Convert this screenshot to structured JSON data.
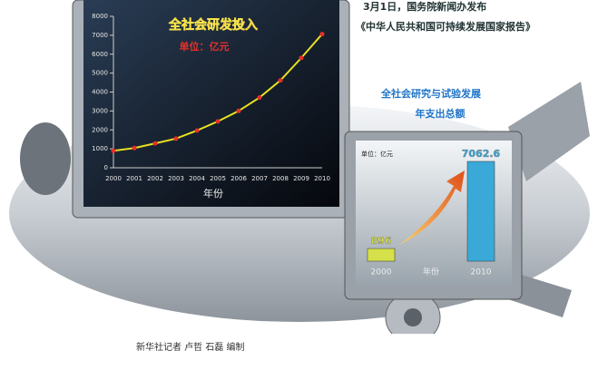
{
  "header": {
    "lines": [
      "3月1日，国务院新闻办发布",
      "《中华人民共和国可持续发展国家报告》"
    ]
  },
  "credit": "新华社记者 卢哲 石磊 编制",
  "chart_data": [
    {
      "type": "line",
      "title": "全社会研发投入",
      "subtitle": "单位：亿元",
      "x_label": "年份",
      "categories": [
        "2000",
        "2001",
        "2002",
        "2003",
        "2004",
        "2005",
        "2006",
        "2007",
        "2008",
        "2009",
        "2010"
      ],
      "values": [
        896,
        1043,
        1288,
        1540,
        1966,
        2450,
        3003,
        3710,
        4616,
        5802,
        7062.6
      ],
      "color": "#e8e020",
      "ylim": [
        0,
        8000
      ],
      "yticks": [
        0,
        1000,
        2000,
        3000,
        4000,
        5000,
        6000,
        7000,
        8000
      ]
    },
    {
      "type": "bar",
      "title": "全社会研究与试验发展",
      "subtitle": "年支出总额",
      "unit": "单位：亿元",
      "x_label": "年份",
      "categories": [
        "2000",
        "2010"
      ],
      "values": [
        896,
        7062.6
      ],
      "colors": [
        "#d6e04a",
        "#3aa9d8"
      ]
    }
  ]
}
